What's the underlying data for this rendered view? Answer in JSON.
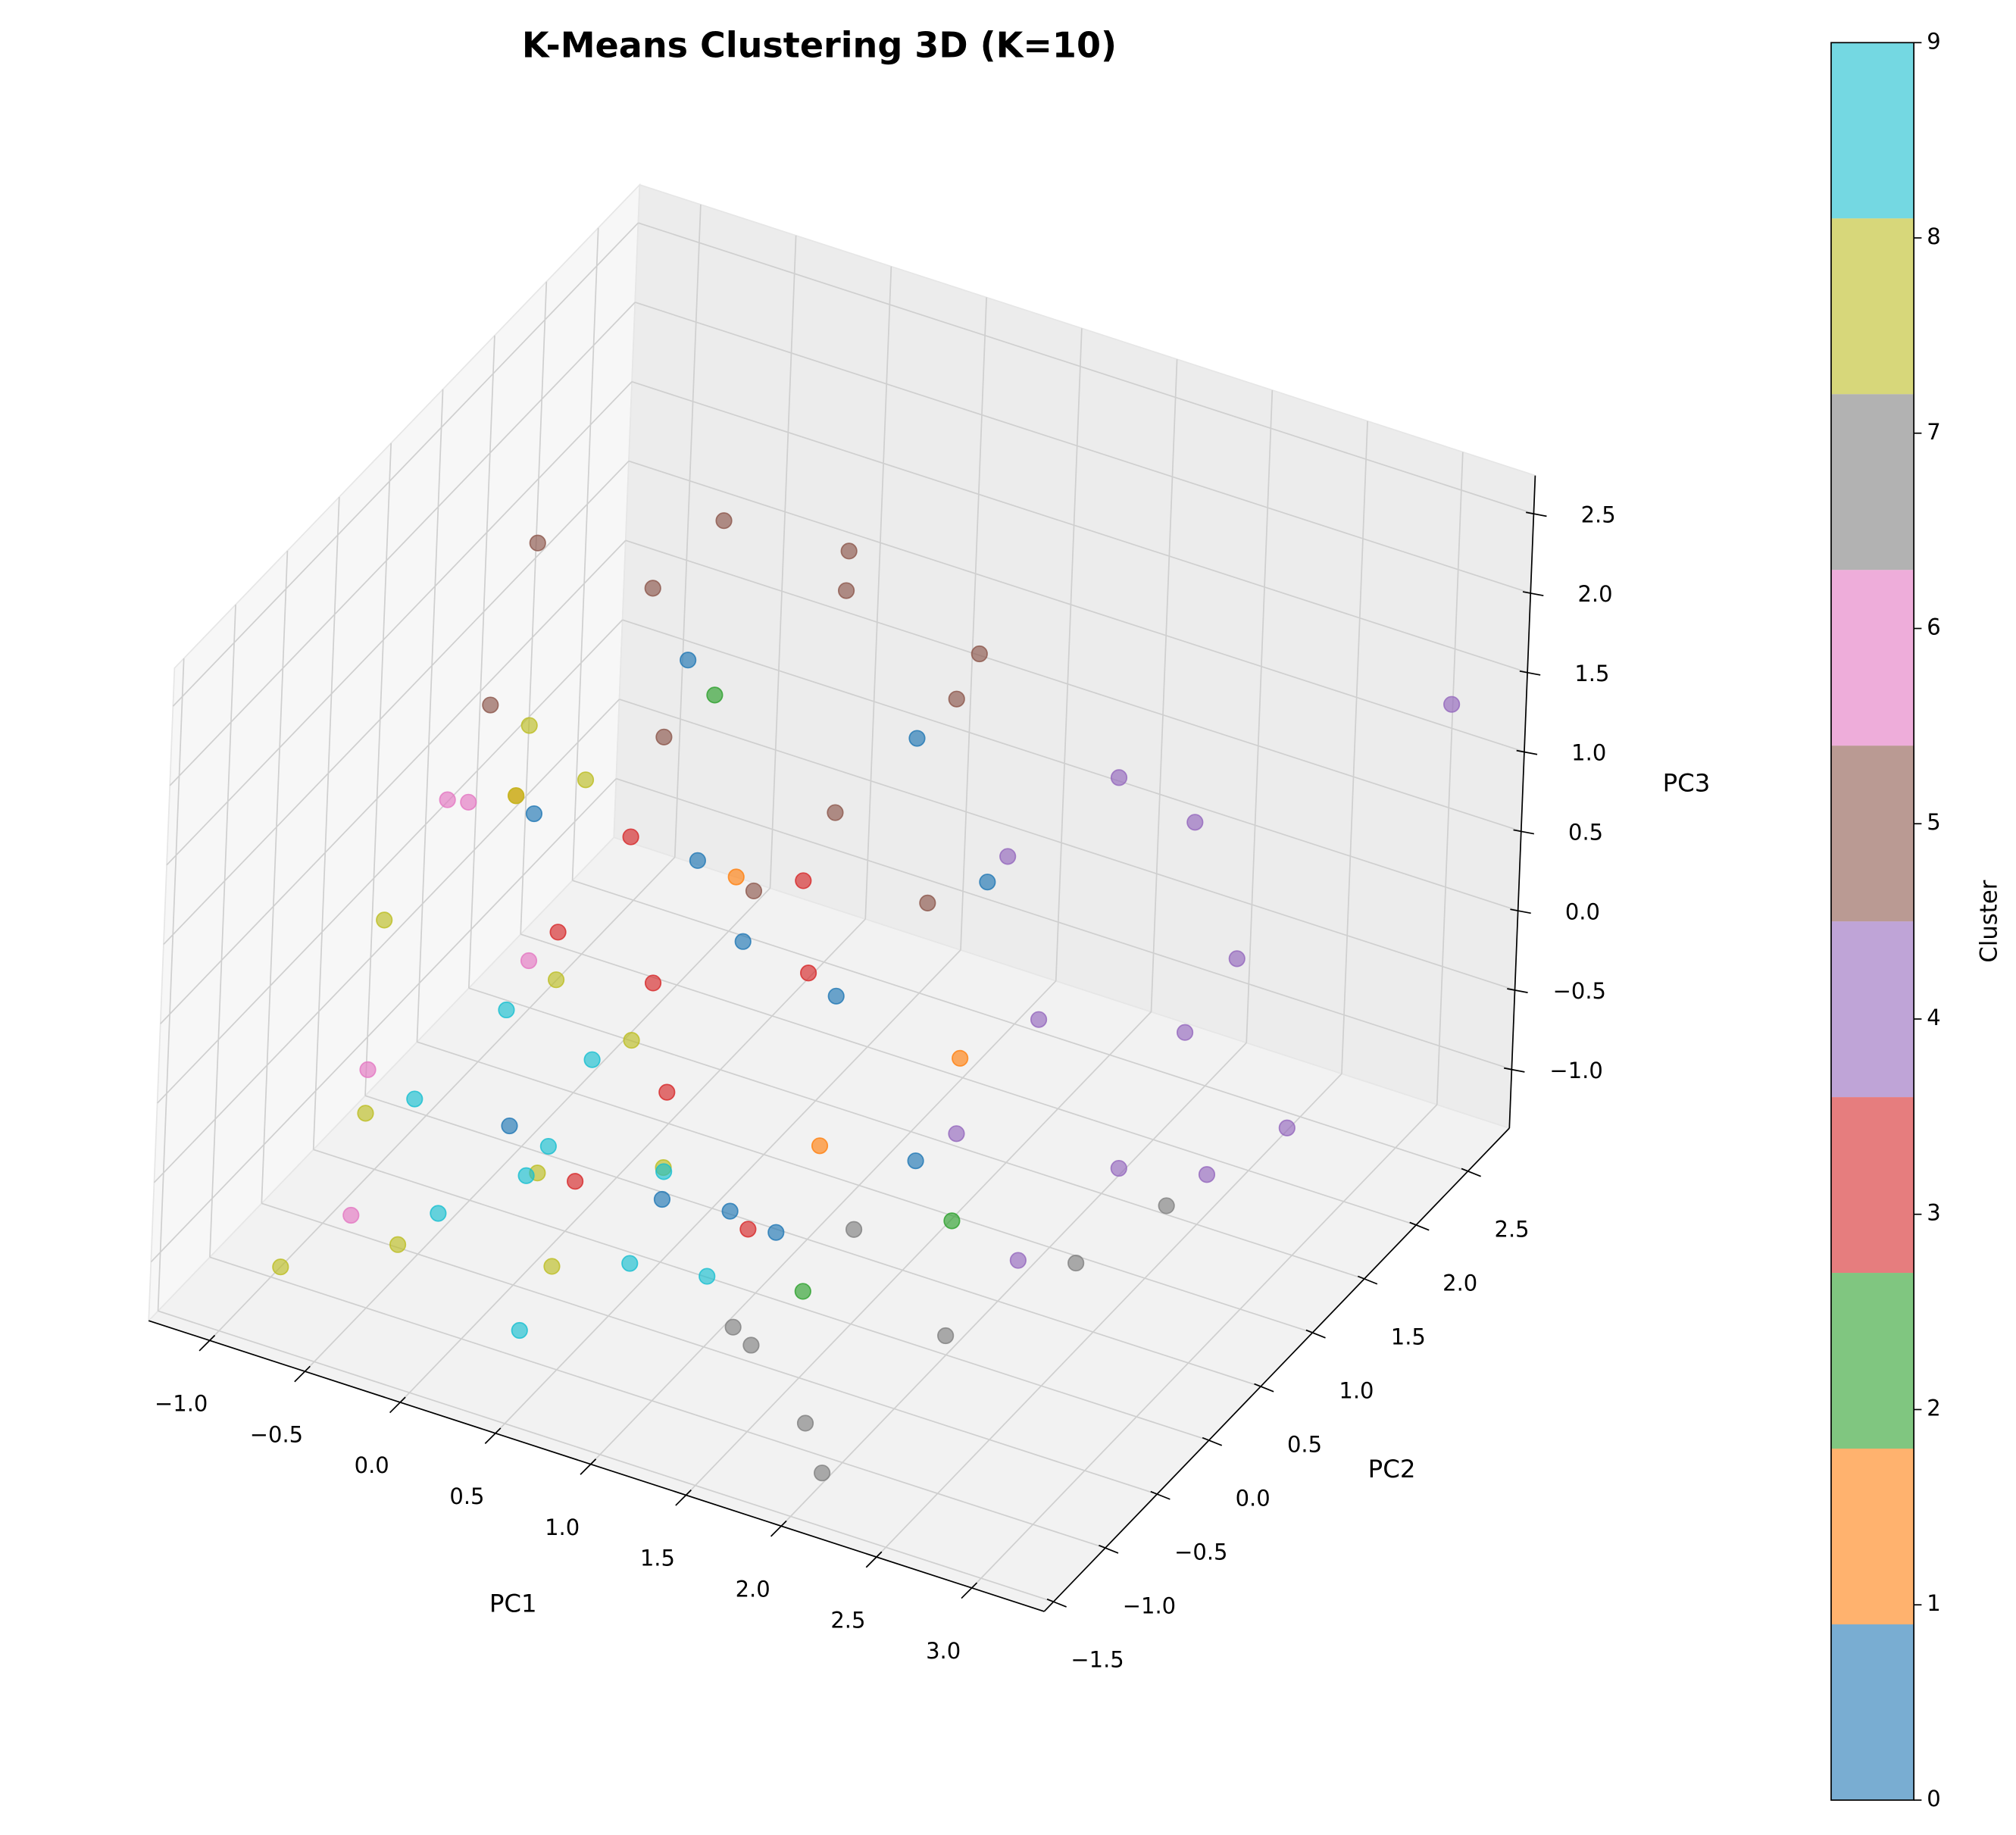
{
  "chart_data": {
    "type": "scatter3d",
    "title": "K-Means Clustering 3D (K=10)",
    "x_label": "PC1",
    "y_label": "PC2",
    "z_label": "PC3",
    "xlim": [
      -1.32,
      3.38
    ],
    "ylim": [
      -1.59,
      2.9
    ],
    "zlim": [
      -1.37,
      2.74
    ],
    "xticks": [
      {
        "value": -1.0,
        "label": "−1.0"
      },
      {
        "value": -0.5,
        "label": "−0.5"
      },
      {
        "value": 0.0,
        "label": "0.0"
      },
      {
        "value": 0.5,
        "label": "0.5"
      },
      {
        "value": 1.0,
        "label": "1.0"
      },
      {
        "value": 1.5,
        "label": "1.5"
      },
      {
        "value": 2.0,
        "label": "2.0"
      },
      {
        "value": 2.5,
        "label": "2.5"
      },
      {
        "value": 3.0,
        "label": "3.0"
      }
    ],
    "yticks": [
      {
        "value": -1.5,
        "label": "−1.5"
      },
      {
        "value": -1.0,
        "label": "−1.0"
      },
      {
        "value": -0.5,
        "label": "−0.5"
      },
      {
        "value": 0.0,
        "label": "0.0"
      },
      {
        "value": 0.5,
        "label": "0.5"
      },
      {
        "value": 1.0,
        "label": "1.0"
      },
      {
        "value": 1.5,
        "label": "1.5"
      },
      {
        "value": 2.0,
        "label": "2.0"
      },
      {
        "value": 2.5,
        "label": "2.5"
      }
    ],
    "zticks": [
      {
        "value": -1.0,
        "label": "−1.0"
      },
      {
        "value": -0.5,
        "label": "−0.5"
      },
      {
        "value": 0.0,
        "label": "0.0"
      },
      {
        "value": 0.5,
        "label": "0.5"
      },
      {
        "value": 1.0,
        "label": "1.0"
      },
      {
        "value": 1.5,
        "label": "1.5"
      },
      {
        "value": 2.0,
        "label": "2.0"
      },
      {
        "value": 2.5,
        "label": "2.5"
      }
    ],
    "grid": true,
    "series": [
      {
        "color": "#1f77b4",
        "x": [
          -0.4,
          0.2,
          0.6,
          1.1,
          1.5,
          0.0,
          0.8,
          -0.2,
          1.3,
          0.4,
          0.9,
          1.7
        ],
        "y": [
          0.3,
          0.8,
          -0.2,
          0.5,
          1.2,
          -0.6,
          0.1,
          1.4,
          -0.4,
          0.9,
          1.6,
          0.2
        ],
        "z": [
          0.9,
          0.5,
          -0.8,
          0.2,
          0.6,
          -0.3,
          -1.0,
          1.2,
          -0.6,
          0.0,
          1.0,
          -0.4
        ]
      },
      {
        "color": "#ff7f0e",
        "x": [
          -0.6,
          0.3,
          1.2,
          1.6
        ],
        "y": [
          0.5,
          1.0,
          0.2,
          0.8
        ],
        "z": [
          0.8,
          0.3,
          -0.5,
          -0.2
        ]
      },
      {
        "color": "#2ca02c",
        "x": [
          0.1,
          1.4,
          1.9
        ],
        "y": [
          1.1,
          -0.3,
          0.2
        ],
        "z": [
          1.3,
          -1.0,
          -0.7
        ]
      },
      {
        "color": "#d62728",
        "x": [
          -0.2,
          0.2,
          0.5,
          0.9,
          0.3,
          0.7,
          1.0,
          -0.1
        ],
        "y": [
          0.2,
          0.4,
          0.0,
          0.6,
          -0.5,
          0.9,
          -0.1,
          0.7
        ],
        "z": [
          0.3,
          0.0,
          -0.3,
          0.2,
          -0.6,
          0.5,
          -0.9,
          0.6
        ]
      },
      {
        "color": "#9467bd",
        "x": [
          1.6,
          2.0,
          2.4,
          2.8,
          2.2,
          1.8,
          2.6,
          3.0,
          2.1,
          1.7,
          2.5,
          3.2
        ],
        "y": [
          1.2,
          0.8,
          1.5,
          1.0,
          0.3,
          1.9,
          0.5,
          1.4,
          2.1,
          0.6,
          1.8,
          2.5
        ],
        "z": [
          0.8,
          0.2,
          -0.2,
          -0.6,
          -0.9,
          0.9,
          -0.3,
          -0.5,
          0.6,
          -0.5,
          0.1,
          1.5
        ]
      },
      {
        "color": "#8c564b",
        "x": [
          -0.9,
          -0.5,
          0.0,
          0.4,
          0.8,
          1.2,
          -0.7,
          0.2,
          0.6,
          1.0,
          -0.3,
          1.4
        ],
        "y": [
          1.2,
          1.6,
          0.8,
          1.8,
          1.0,
          1.4,
          0.4,
          2.2,
          0.6,
          2.0,
          1.9,
          0.8
        ],
        "z": [
          1.8,
          1.4,
          1.2,
          1.6,
          0.9,
          1.5,
          1.4,
          1.5,
          0.6,
          1.3,
          1.7,
          0.7
        ]
      },
      {
        "color": "#e377c2",
        "x": [
          -1.0,
          -0.9,
          -0.8,
          -0.7,
          -0.5
        ],
        "y": [
          0.8,
          -0.3,
          0.2,
          -0.8,
          0.5
        ],
        "z": [
          0.4,
          -0.5,
          0.9,
          -1.0,
          -0.2
        ]
      },
      {
        "color": "#7f7f7f",
        "x": [
          1.4,
          1.8,
          2.2,
          1.6,
          2.5,
          2.0,
          1.2,
          2.7
        ],
        "y": [
          -0.8,
          -1.0,
          -0.4,
          -0.2,
          0.3,
          -1.2,
          -0.6,
          0.8
        ],
        "z": [
          -1.0,
          -1.2,
          -0.9,
          -0.6,
          -0.8,
          -1.3,
          -1.1,
          -0.7
        ]
      },
      {
        "color": "#bcbd22",
        "x": [
          -1.0,
          -0.8,
          -0.6,
          -0.4,
          -0.2,
          0.0,
          -0.9,
          -0.5,
          0.3,
          -0.7,
          0.1,
          0.6
        ],
        "y": [
          0.0,
          -0.5,
          0.5,
          -0.9,
          0.2,
          -0.3,
          -1.1,
          1.0,
          -0.7,
          0.8,
          0.4,
          -0.2
        ],
        "z": [
          0.2,
          -0.6,
          0.8,
          -1.0,
          0.0,
          -0.8,
          -1.2,
          0.6,
          -1.0,
          1.0,
          -0.4,
          -0.6
        ]
      },
      {
        "color": "#17becf",
        "x": [
          -0.6,
          -0.3,
          0.0,
          0.3,
          0.6,
          -0.4,
          0.2,
          0.9,
          -0.1,
          0.5
        ],
        "y": [
          -0.4,
          -0.7,
          -0.2,
          -1.0,
          -0.5,
          0.1,
          -0.8,
          -0.3,
          0.4,
          0.0
        ],
        "z": [
          -0.5,
          -0.9,
          -0.7,
          -1.2,
          -1.0,
          -0.2,
          -0.4,
          -1.1,
          -0.6,
          -0.8
        ]
      }
    ],
    "colorbar": {
      "label": "Cluster",
      "lim": [
        0,
        9
      ],
      "ticks": [
        0,
        1,
        2,
        3,
        4,
        5,
        6,
        7,
        8,
        9
      ],
      "colors": [
        "#1f77b4",
        "#ff7f0e",
        "#2ca02c",
        "#d62728",
        "#9467bd",
        "#8c564b",
        "#e377c2",
        "#7f7f7f",
        "#bcbd22",
        "#17becf"
      ]
    }
  }
}
